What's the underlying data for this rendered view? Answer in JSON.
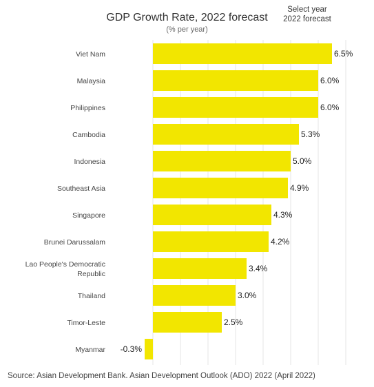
{
  "header": {
    "title": "GDP Growth Rate, 2022 forecast",
    "subtitle": "(% per year)",
    "selector_label": "Select year",
    "selector_value": "2022 forecast"
  },
  "footer": {
    "source": "Source: Asian Development Bank. Asian Development Outlook (ADO) 2022 (April 2022)"
  },
  "colors": {
    "bar": "#f2e600",
    "grid": "#e6e6e6"
  },
  "chart_data": {
    "type": "bar",
    "orientation": "horizontal",
    "title": "GDP Growth Rate, 2022 forecast",
    "subtitle": "(% per year)",
    "xlabel": "",
    "ylabel": "",
    "xlim": [
      -0.5,
      7
    ],
    "grid": true,
    "categories": [
      "Viet Nam",
      "Malaysia",
      "Philippines",
      "Cambodia",
      "Indonesia",
      "Southeast Asia",
      "Singapore",
      "Brunei Darussalam",
      "Lao People's Democratic Republic",
      "Thailand",
      "Timor-Leste",
      "Myanmar"
    ],
    "values": [
      6.5,
      6.0,
      6.0,
      5.3,
      5.0,
      4.9,
      4.3,
      4.2,
      3.4,
      3.0,
      2.5,
      -0.3
    ],
    "value_labels": [
      "6.5%",
      "6.0%",
      "6.0%",
      "5.3%",
      "5.0%",
      "4.9%",
      "4.3%",
      "4.2%",
      "3.4%",
      "3.0%",
      "2.5%",
      "-0.3%"
    ]
  }
}
